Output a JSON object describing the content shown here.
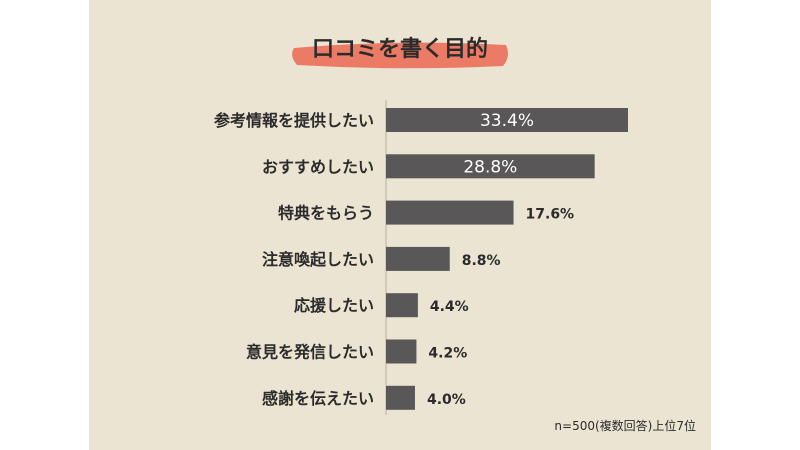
{
  "title": "口コミを書く目的",
  "note": "n=500(複数回答)上位7位",
  "colors": {
    "background": "#ebe4d2",
    "bar": "#595757",
    "title_highlight": "#ec7b66",
    "text": "#2b2b2b"
  },
  "chart_data": {
    "type": "bar",
    "orientation": "horizontal",
    "title": "口コミを書く目的",
    "categories": [
      "参考情報を提供したい",
      "おすすめしたい",
      "特典をもらう",
      "注意喚起したい",
      "応援したい",
      "意見を発信したい",
      "感謝を伝えたい"
    ],
    "values": [
      33.4,
      28.8,
      17.6,
      8.8,
      4.4,
      4.2,
      4.0
    ],
    "value_labels": [
      "33.4%",
      "28.8%",
      "17.6%",
      "8.8%",
      "4.4%",
      "4.2%",
      "4.0%"
    ],
    "unit": "%",
    "xlim": [
      0,
      33.4
    ],
    "grid": false,
    "legend": "none"
  }
}
